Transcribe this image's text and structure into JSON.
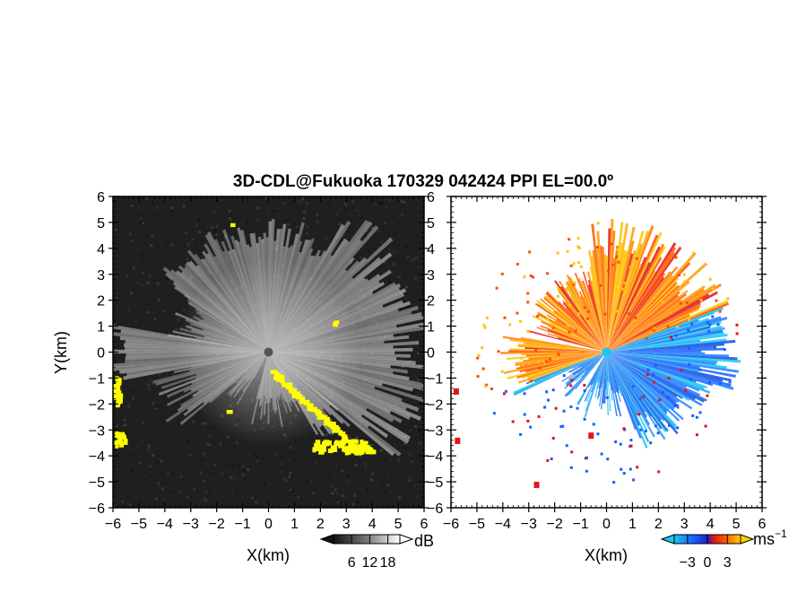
{
  "title": "3D-CDL@Fukuoka 170329 042424 PPI EL=00.0º",
  "colors": {
    "reflectivity_background": "#1f1f1f",
    "reflectivity_high": "#f2f2f2",
    "clutter": "#ffff00",
    "velocity_toward": "#1560ff",
    "velocity_toward_light": "#19c8f0",
    "velocity_away": "#ff4c00",
    "velocity_away_light": "#ffc400",
    "velocity_red": "#e51414"
  },
  "chart_data": [
    {
      "type": "heatmap",
      "panel": "reflectivity",
      "xlabel": "X(km)",
      "ylabel": "Y(km)",
      "xlim": [
        -6,
        6
      ],
      "ylim": [
        -6,
        6
      ],
      "xticks": [
        "−6",
        "−5",
        "−4",
        "−3",
        "−2",
        "−1",
        "0",
        "1",
        "2",
        "3",
        "4",
        "5",
        "6"
      ],
      "yticks": [
        "6",
        "5",
        "4",
        "3",
        "2",
        "1",
        "0",
        "−1",
        "−2",
        "−3",
        "−4",
        "−5",
        "−6"
      ],
      "colorbar": {
        "unit": "dB",
        "ticks": [
          "6",
          "12",
          "18"
        ],
        "range": [
          0,
          22
        ]
      }
    },
    {
      "type": "heatmap",
      "panel": "doppler_velocity",
      "xlabel": "X(km)",
      "xlim": [
        -6,
        6
      ],
      "ylim": [
        -6,
        6
      ],
      "xticks": [
        "−6",
        "−5",
        "−4",
        "−3",
        "−2",
        "−1",
        "0",
        "1",
        "2",
        "3",
        "4",
        "5",
        "6"
      ],
      "yticks": [
        "6",
        "5",
        "4",
        "3",
        "2",
        "1",
        "0",
        "−1",
        "−2",
        "−3",
        "−4",
        "−5",
        "−6"
      ],
      "colorbar": {
        "unit": "ms",
        "unit_exponent": "−1",
        "ticks": [
          "−3",
          "0",
          "3"
        ],
        "range": [
          -5,
          5
        ]
      }
    }
  ]
}
